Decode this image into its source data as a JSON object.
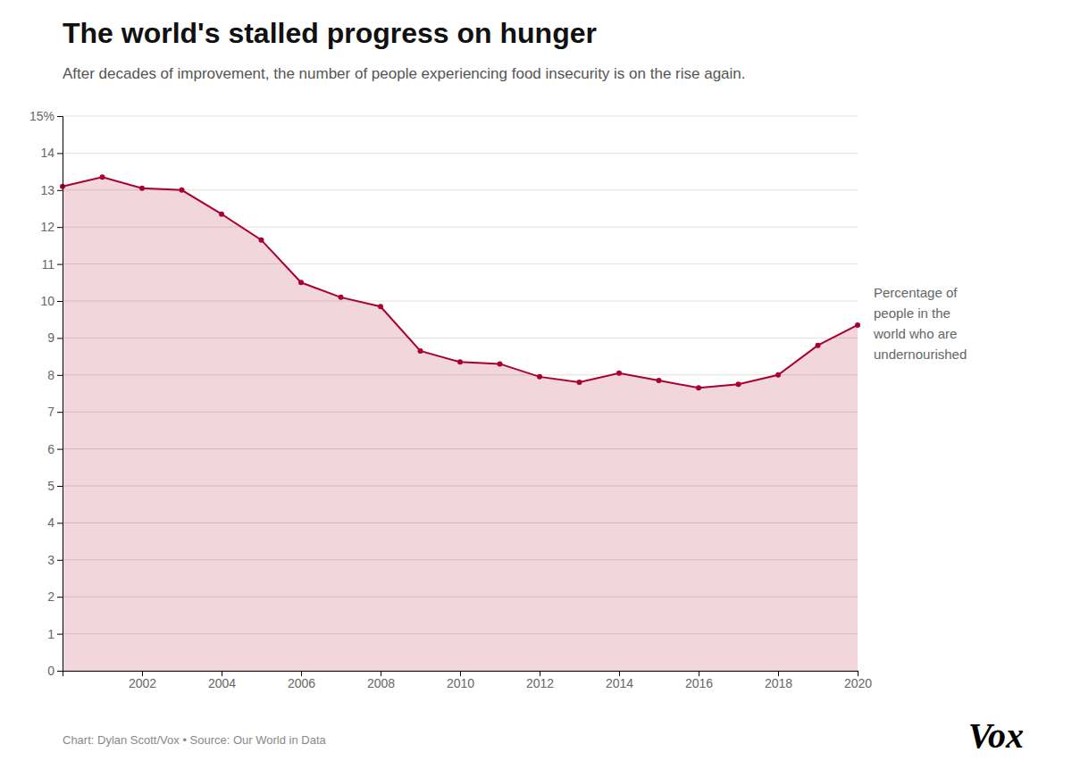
{
  "chart_data": {
    "type": "area",
    "title": "The world's stalled progress on hunger",
    "subtitle": "After decades of improvement, the number of people experiencing food insecurity is on the rise again.",
    "x": [
      2000,
      2001,
      2002,
      2003,
      2004,
      2005,
      2006,
      2007,
      2008,
      2009,
      2010,
      2011,
      2012,
      2013,
      2014,
      2015,
      2016,
      2017,
      2018,
      2019,
      2020
    ],
    "values": [
      13.1,
      13.35,
      13.05,
      13.0,
      12.35,
      11.65,
      10.5,
      10.1,
      9.85,
      8.65,
      8.35,
      8.3,
      7.95,
      7.8,
      8.05,
      7.85,
      7.65,
      7.75,
      8.0,
      8.8,
      9.35
    ],
    "color": "#aa0030",
    "marker": "circle",
    "xlim": [
      2000,
      2020
    ],
    "xticks": [
      2002,
      2004,
      2006,
      2008,
      2010,
      2012,
      2014,
      2016,
      2018,
      2020
    ],
    "ylim": [
      0,
      15
    ],
    "yticks": [
      0,
      1,
      2,
      3,
      4,
      5,
      6,
      7,
      8,
      9,
      10,
      11,
      12,
      13,
      14,
      {
        "value": 15,
        "label": "15%"
      }
    ],
    "grid": "y",
    "annotation": "Percentage of\npeople in the\nworld who are\nundernourished",
    "footer": "Chart: Dylan Scott/Vox • Source: Our World in Data",
    "logo": "Vox"
  }
}
